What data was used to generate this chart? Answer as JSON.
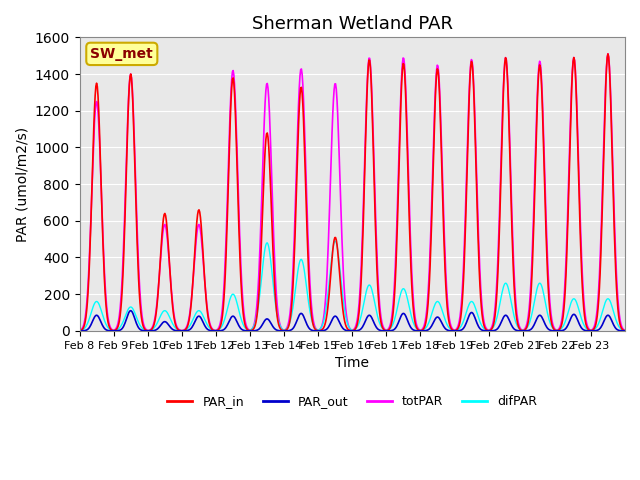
{
  "title": "Sherman Wetland PAR",
  "ylabel": "PAR (umol/m2/s)",
  "xlabel": "Time",
  "ylim": [
    0,
    1600
  ],
  "yticks": [
    0,
    200,
    400,
    600,
    800,
    1000,
    1200,
    1400,
    1600
  ],
  "xtick_labels": [
    "Feb 8",
    "Feb 9",
    "Feb 10",
    "Feb 11",
    "Feb 12",
    "Feb 13",
    "Feb 14",
    "Feb 15",
    "Feb 16",
    "Feb 17",
    "Feb 18",
    "Feb 19",
    "Feb 20",
    "Feb 21",
    "Feb 22",
    "Feb 23"
  ],
  "xtick_positions": [
    0,
    1,
    2,
    3,
    4,
    5,
    6,
    7,
    8,
    9,
    10,
    11,
    12,
    13,
    14,
    15
  ],
  "colors": {
    "PAR_in": "#ff0000",
    "PAR_out": "#0000cc",
    "totPAR": "#ff00ff",
    "difPAR": "#00ffff"
  },
  "legend_labels": [
    "PAR_in",
    "PAR_out",
    "totPAR",
    "difPAR"
  ],
  "station_label": "SW_met",
  "background_color": "#e8e8e8",
  "title_fontsize": 13,
  "label_fontsize": 10,
  "par_in_peaks": [
    1350,
    1400,
    640,
    660,
    1380,
    1080,
    1330,
    510,
    1480,
    1460,
    1430,
    1470,
    1490,
    1450,
    1490,
    1510
  ],
  "tot_peaks": [
    1250,
    1400,
    580,
    580,
    1420,
    1350,
    1430,
    1350,
    1490,
    1490,
    1450,
    1480,
    1490,
    1470,
    1490,
    1510
  ],
  "par_out_peaks": [
    85,
    110,
    50,
    80,
    80,
    65,
    95,
    80,
    85,
    95,
    75,
    100,
    85,
    85,
    90,
    85
  ],
  "dif_peaks": [
    160,
    130,
    110,
    110,
    200,
    480,
    390,
    490,
    250,
    230,
    160,
    160,
    260,
    260,
    175,
    175
  ]
}
